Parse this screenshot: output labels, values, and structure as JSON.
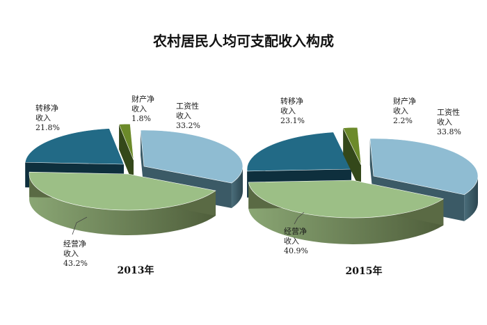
{
  "title": "农村居民人均可支配收入构成",
  "colors": {
    "wage": {
      "top": "#8fbcd2",
      "side": "#3b5a66"
    },
    "transfer": {
      "top": "#226a86",
      "side": "#0e2f3d"
    },
    "property": {
      "top": "#6c8a2a",
      "side": "#34481a"
    },
    "business": {
      "top": "#9cbf86",
      "side": "#5a6a44"
    }
  },
  "chart_data": [
    {
      "type": "pie",
      "year_label": "2013年",
      "slices": [
        {
          "key": "wage",
          "label_lines": [
            "工资性",
            "收入"
          ],
          "value": 33.2,
          "pct": "33.2%"
        },
        {
          "key": "business",
          "label_lines": [
            "经营净",
            "收入"
          ],
          "value": 43.2,
          "pct": "43.2%"
        },
        {
          "key": "transfer",
          "label_lines": [
            "转移净",
            "收入"
          ],
          "value": 21.8,
          "pct": "21.8%"
        },
        {
          "key": "property",
          "label_lines": [
            "财产净",
            "收入"
          ],
          "value": 1.8,
          "pct": "1.8%"
        }
      ]
    },
    {
      "type": "pie",
      "year_label": "2015年",
      "slices": [
        {
          "key": "wage",
          "label_lines": [
            "工资性",
            "收入"
          ],
          "value": 33.8,
          "pct": "33.8%"
        },
        {
          "key": "business",
          "label_lines": [
            "经营净",
            "收入"
          ],
          "value": 40.9,
          "pct": "40.9%"
        },
        {
          "key": "transfer",
          "label_lines": [
            "转移净",
            "收入"
          ],
          "value": 23.1,
          "pct": "23.1%"
        },
        {
          "key": "property",
          "label_lines": [
            "财产净",
            "收入"
          ],
          "value": 2.2,
          "pct": "2.2%"
        }
      ]
    }
  ]
}
